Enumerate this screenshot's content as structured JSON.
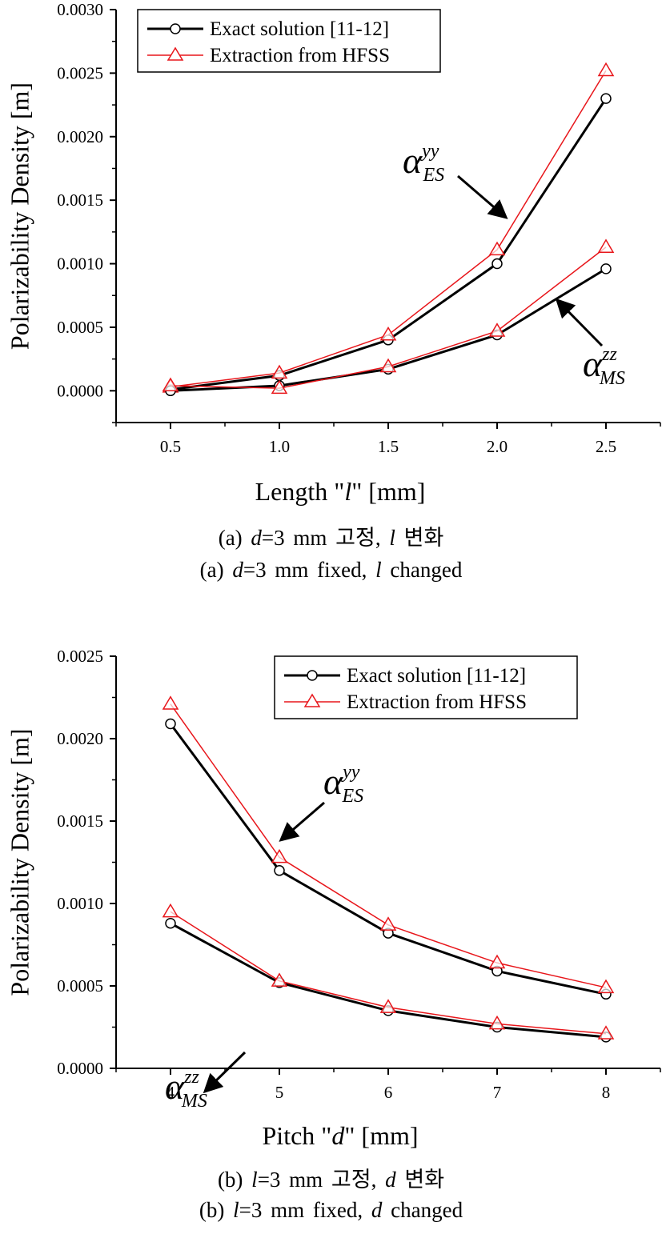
{
  "colors": {
    "exact": "#000000",
    "hfss": "#e8161b",
    "axis": "#000000"
  },
  "legend": {
    "exact": "Exact solution [11-12]",
    "hfss": "Extraction from HFSS"
  },
  "chart_data": [
    {
      "type": "line",
      "xlabel_pre": "Length \"",
      "xlabel_var": "l",
      "xlabel_post": "\" [mm]",
      "ylabel": "Polarizability Density [m]",
      "x": [
        0.5,
        1.0,
        1.5,
        2.0,
        2.5
      ],
      "xticks": [
        "0.5",
        "1.0",
        "1.5",
        "2.0",
        "2.5"
      ],
      "yticks": [
        "0.0000",
        "0.0005",
        "0.0010",
        "0.0015",
        "0.0020",
        "0.0025",
        "0.0030"
      ],
      "xlim": [
        0.25,
        2.75
      ],
      "ylim": [
        -0.00025,
        0.003
      ],
      "series": [
        {
          "name": "Exact solution [11-12]",
          "label": "ES-yy",
          "marker": "circle",
          "values": [
            1e-05,
            0.00012,
            0.0004,
            0.001,
            0.0023
          ]
        },
        {
          "name": "Extraction from HFSS",
          "label": "ES-yy",
          "marker": "triangle",
          "values": [
            3e-05,
            0.00014,
            0.00044,
            0.00111,
            0.00252
          ]
        },
        {
          "name": "Exact solution [11-12]",
          "label": "MS-zz",
          "marker": "circle",
          "values": [
            0.0,
            4e-05,
            0.00017,
            0.00044,
            0.00096
          ]
        },
        {
          "name": "Extraction from HFSS",
          "label": "MS-zz",
          "marker": "triangle",
          "values": [
            4e-05,
            2e-05,
            0.00019,
            0.00047,
            0.00113
          ]
        }
      ],
      "annotations": [
        {
          "sub": "ES",
          "sup": "yy"
        },
        {
          "sub": "MS",
          "sup": "zz"
        }
      ],
      "caption_kr": {
        "pre": "(a) ",
        "v1": "d",
        "mid": "=3 mm 고정, ",
        "v2": "l",
        "post": " 변화"
      },
      "caption_en": {
        "pre": "(a) ",
        "v1": "d",
        "mid": "=3 mm fixed, ",
        "v2": "l",
        "post": " changed"
      }
    },
    {
      "type": "line",
      "xlabel_pre": "Pitch \"",
      "xlabel_var": "d",
      "xlabel_post": "\" [mm]",
      "ylabel": "Polarizability Density [m]",
      "x": [
        4,
        5,
        6,
        7,
        8
      ],
      "xticks": [
        "4",
        "5",
        "6",
        "7",
        "8"
      ],
      "yticks": [
        "0.0000",
        "0.0005",
        "0.0010",
        "0.0015",
        "0.0020",
        "0.0025"
      ],
      "xlim": [
        3.5,
        8.5
      ],
      "ylim": [
        0.0,
        0.0025
      ],
      "series": [
        {
          "name": "Exact solution [11-12]",
          "label": "ES-yy",
          "marker": "circle",
          "values": [
            0.00209,
            0.0012,
            0.00082,
            0.00059,
            0.00045
          ]
        },
        {
          "name": "Extraction from HFSS",
          "label": "ES-yy",
          "marker": "triangle",
          "values": [
            0.00221,
            0.00128,
            0.00087,
            0.00064,
            0.00049
          ]
        },
        {
          "name": "Exact solution [11-12]",
          "label": "MS-zz",
          "marker": "circle",
          "values": [
            0.00088,
            0.00052,
            0.00035,
            0.00025,
            0.00019
          ]
        },
        {
          "name": "Extraction from HFSS",
          "label": "MS-zz",
          "marker": "triangle",
          "values": [
            0.00095,
            0.00053,
            0.00037,
            0.00027,
            0.00021
          ]
        }
      ],
      "annotations": [
        {
          "sub": "ES",
          "sup": "yy"
        },
        {
          "sub": "MS",
          "sup": "zz"
        }
      ],
      "caption_kr": {
        "pre": "(b) ",
        "v1": "l",
        "mid": "=3 mm 고정, ",
        "v2": "d",
        "post": " 변화"
      },
      "caption_en": {
        "pre": "(b) ",
        "v1": "l",
        "mid": "=3 mm fixed, ",
        "v2": "d",
        "post": " changed"
      }
    }
  ]
}
